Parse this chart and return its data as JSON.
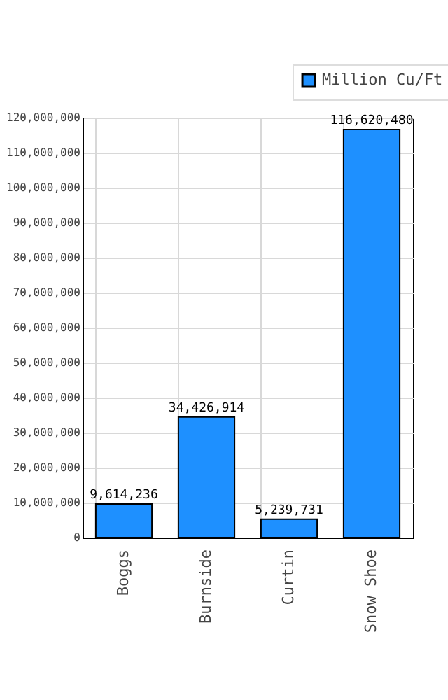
{
  "chart_data": {
    "type": "bar",
    "categories": [
      "Boggs",
      "Burnside",
      "Curtin",
      "Snow Shoe"
    ],
    "series": [
      {
        "name": "Million Cu/Ft",
        "color": "#1e90ff",
        "values": [
          9614236,
          34426914,
          5239731,
          116620480
        ]
      }
    ],
    "ylim": [
      0,
      120000000
    ],
    "yticks": [
      {
        "value": 0,
        "label": "0"
      },
      {
        "value": 10000000,
        "label": "10,000,000"
      },
      {
        "value": 20000000,
        "label": "20,000,000"
      },
      {
        "value": 30000000,
        "label": "30,000,000"
      },
      {
        "value": 40000000,
        "label": "40,000,000"
      },
      {
        "value": 50000000,
        "label": "50,000,000"
      },
      {
        "value": 60000000,
        "label": "60,000,000"
      },
      {
        "value": 70000000,
        "label": "70,000,000"
      },
      {
        "value": 80000000,
        "label": "80,000,000"
      },
      {
        "value": 90000000,
        "label": "90,000,000"
      },
      {
        "value": 100000000,
        "label": "100,000,000"
      },
      {
        "value": 110000000,
        "label": "110,000,000"
      },
      {
        "value": 120000000,
        "label": "120,000,000"
      }
    ],
    "value_labels": [
      "9,614,236",
      "34,426,914",
      "5,239,731",
      "116,620,480"
    ],
    "grid": true,
    "legend": "top right"
  }
}
